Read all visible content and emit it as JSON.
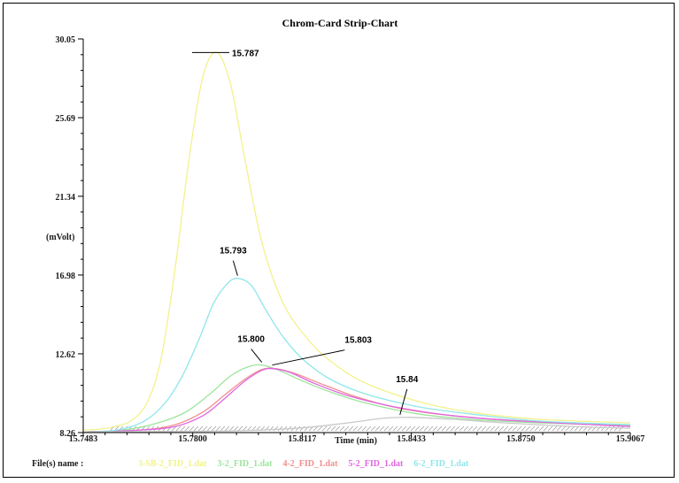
{
  "chart_data": {
    "type": "line",
    "title": "Chrom-Card Strip-Chart",
    "xlabel": "Time (min)",
    "ylabel": "(mVolt)",
    "xlim": [
      15.7483,
      15.9067
    ],
    "ylim": [
      8.26,
      30.05
    ],
    "x_ticks": [
      "15.7483",
      "15.7800",
      "15.8117",
      "15.8433",
      "15.8750",
      "15.9067"
    ],
    "y_ticks": [
      "30.05",
      "25.69",
      "21.34",
      "16.98",
      "12.62",
      "8.26"
    ],
    "grid": false,
    "legend_position": "bottom",
    "legend_title": "File(s) name :",
    "series": [
      {
        "name": "3-SB-2_FID_1.dat",
        "color": "#f2f28c",
        "x": [
          15.7483,
          15.755,
          15.762,
          15.767,
          15.771,
          15.775,
          15.779,
          15.783,
          15.787,
          15.791,
          15.795,
          15.8,
          15.806,
          15.813,
          15.82,
          15.83,
          15.845,
          15.86,
          15.88,
          15.9067
        ],
        "y": [
          8.4,
          8.5,
          8.9,
          10.0,
          12.5,
          17.5,
          23.5,
          28.0,
          29.3,
          27.5,
          23.5,
          18.8,
          15.5,
          13.5,
          12.2,
          11.0,
          10.0,
          9.4,
          9.0,
          8.8
        ]
      },
      {
        "name": "3-2_FID_1.dat",
        "color": "#9be59b",
        "x": [
          15.7483,
          15.76,
          15.77,
          15.778,
          15.785,
          15.791,
          15.796,
          15.8,
          15.805,
          15.812,
          15.82,
          15.83,
          15.845,
          15.86,
          15.88,
          15.9067
        ],
        "y": [
          8.3,
          8.4,
          8.8,
          9.4,
          10.4,
          11.4,
          11.9,
          12.0,
          11.7,
          11.1,
          10.5,
          9.9,
          9.3,
          9.0,
          8.8,
          8.65
        ]
      },
      {
        "name": "4-2_FID_1.dat",
        "color": "#f08f8f",
        "x": [
          15.7483,
          15.765,
          15.775,
          15.783,
          15.789,
          15.795,
          15.8,
          15.804,
          15.81,
          15.818,
          15.828,
          15.84,
          15.855,
          15.875,
          15.9067
        ],
        "y": [
          8.3,
          8.4,
          8.7,
          9.4,
          10.3,
          11.2,
          11.75,
          11.8,
          11.5,
          10.9,
          10.2,
          9.6,
          9.2,
          8.9,
          8.6
        ]
      },
      {
        "name": "5-2_FID_1.dat",
        "color": "#e066e0",
        "x": [
          15.7483,
          15.765,
          15.775,
          15.783,
          15.789,
          15.795,
          15.8,
          15.803,
          15.808,
          15.815,
          15.825,
          15.838,
          15.855,
          15.875,
          15.9067
        ],
        "y": [
          8.3,
          8.4,
          8.6,
          9.2,
          10.1,
          11.1,
          11.7,
          11.8,
          11.6,
          11.0,
          10.3,
          9.7,
          9.2,
          8.9,
          8.6
        ]
      },
      {
        "name": "6-2_FID_1.dat",
        "color": "#8fe6ea",
        "x": [
          15.7483,
          15.758,
          15.766,
          15.772,
          15.777,
          15.782,
          15.786,
          15.79,
          15.793,
          15.797,
          15.801,
          15.806,
          15.812,
          15.82,
          15.83,
          15.845,
          15.86,
          15.88,
          15.9067
        ],
        "y": [
          8.3,
          8.4,
          8.9,
          9.9,
          11.4,
          13.5,
          15.4,
          16.5,
          16.8,
          16.4,
          15.1,
          13.6,
          12.3,
          11.2,
          10.4,
          9.7,
          9.3,
          8.9,
          8.7
        ]
      },
      {
        "name": "",
        "color": "#c9c9c9",
        "x": [
          15.7483,
          15.79,
          15.81,
          15.825,
          15.835,
          15.843,
          15.855,
          15.87,
          15.89,
          15.9067
        ],
        "y": [
          8.3,
          8.35,
          8.5,
          8.8,
          9.05,
          9.1,
          9.0,
          8.8,
          8.6,
          8.5
        ]
      }
    ],
    "annotations": [
      {
        "label": "15.787",
        "x": 15.787,
        "y": 29.3,
        "dx": 14,
        "dy": 0
      },
      {
        "label": "15.793",
        "x": 15.793,
        "y": 16.8,
        "dx": -5,
        "dy": -28
      },
      {
        "label": "15.800",
        "x": 15.8,
        "y": 12.0,
        "dx": -12,
        "dy": -26
      },
      {
        "label": "15.803",
        "x": 15.803,
        "y": 11.85,
        "dx": 82,
        "dy": -28
      },
      {
        "label": "15.84",
        "x": 15.84,
        "y": 9.1,
        "dx": 8,
        "dy": -40
      }
    ]
  }
}
